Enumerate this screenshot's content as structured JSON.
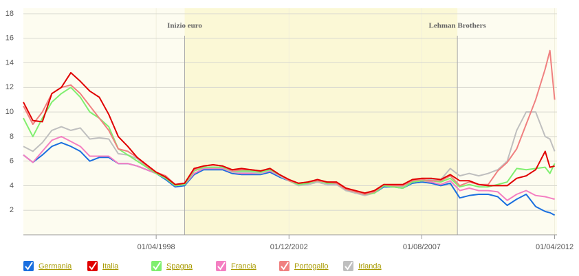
{
  "chart_data": {
    "type": "line",
    "x": [
      "01/08/1993",
      "01/12/1993",
      "01/04/1994",
      "01/08/1994",
      "01/12/1994",
      "01/04/1995",
      "01/08/1995",
      "01/12/1995",
      "01/04/1996",
      "01/08/1996",
      "01/12/1996",
      "01/04/1997",
      "01/08/1997",
      "01/12/1997",
      "01/04/1998",
      "01/08/1998",
      "01/12/1998",
      "01/04/1999",
      "01/08/1999",
      "01/12/1999",
      "01/04/2000",
      "01/08/2000",
      "01/12/2000",
      "01/04/2001",
      "01/08/2001",
      "01/12/2001",
      "01/04/2002",
      "01/08/2002",
      "01/12/2002",
      "01/04/2003",
      "01/08/2003",
      "01/12/2003",
      "01/04/2004",
      "01/08/2004",
      "01/12/2004",
      "01/04/2005",
      "01/08/2005",
      "01/12/2005",
      "01/04/2006",
      "01/08/2006",
      "01/12/2006",
      "01/04/2007",
      "01/08/2007",
      "01/12/2007",
      "01/04/2008",
      "01/08/2008",
      "01/12/2008",
      "01/04/2009",
      "01/08/2009",
      "01/12/2009",
      "01/04/2010",
      "01/08/2010",
      "01/12/2010",
      "01/04/2011",
      "01/08/2011",
      "01/12/2011",
      "01/02/2012",
      "01/04/2012"
    ],
    "xlim": [
      "01/08/1993",
      "01/05/2012"
    ],
    "xticks": [
      "01/04/1998",
      "01/12/2002",
      "01/08/2007",
      "01/04/2012"
    ],
    "ylim": [
      0,
      18
    ],
    "yticks": [
      2,
      4,
      6,
      8,
      10,
      12,
      14,
      16,
      18
    ],
    "grid": true,
    "annotations": [
      {
        "label": "Inizio euro",
        "x": "01/04/1999"
      },
      {
        "label": "Lehman Brothers",
        "x": "01/11/2008"
      }
    ],
    "series": [
      {
        "name": "Germania",
        "color": "#1a6fdf",
        "values": [
          6.5,
          5.9,
          6.5,
          7.2,
          7.5,
          7.2,
          6.8,
          6.0,
          6.3,
          6.3,
          5.8,
          5.8,
          5.6,
          5.3,
          5.0,
          4.5,
          3.9,
          4.0,
          4.9,
          5.3,
          5.3,
          5.3,
          5.0,
          4.9,
          4.9,
          4.9,
          5.1,
          4.7,
          4.4,
          4.1,
          4.1,
          4.3,
          4.1,
          4.1,
          3.7,
          3.4,
          3.3,
          3.4,
          3.9,
          3.9,
          3.8,
          4.2,
          4.3,
          4.2,
          4.0,
          4.2,
          3.0,
          3.2,
          3.3,
          3.3,
          3.1,
          2.4,
          2.9,
          3.3,
          2.3,
          1.9,
          1.8,
          1.6
        ]
      },
      {
        "name": "Italia",
        "color": "#e00000",
        "values": [
          10.8,
          9.3,
          9.2,
          11.5,
          12.0,
          13.2,
          12.5,
          11.7,
          11.2,
          9.8,
          8.0,
          7.2,
          6.3,
          5.7,
          5.1,
          4.7,
          4.1,
          4.2,
          5.4,
          5.6,
          5.7,
          5.6,
          5.3,
          5.4,
          5.3,
          5.2,
          5.4,
          4.9,
          4.5,
          4.2,
          4.3,
          4.5,
          4.3,
          4.3,
          3.8,
          3.6,
          3.4,
          3.6,
          4.1,
          4.1,
          4.1,
          4.5,
          4.6,
          4.6,
          4.5,
          4.9,
          4.4,
          4.4,
          4.1,
          4.0,
          4.0,
          4.0,
          4.6,
          4.8,
          5.3,
          6.8,
          5.5,
          5.6
        ]
      },
      {
        "name": "Spagna",
        "color": "#7fef6f",
        "values": [
          9.5,
          8.0,
          9.5,
          10.8,
          11.5,
          12.0,
          11.2,
          10.0,
          9.5,
          8.8,
          7.0,
          6.5,
          6.0,
          5.5,
          5.0,
          4.6,
          4.0,
          4.1,
          5.2,
          5.5,
          5.5,
          5.5,
          5.2,
          5.2,
          5.2,
          5.1,
          5.3,
          4.9,
          4.4,
          4.1,
          4.2,
          4.4,
          4.2,
          4.2,
          3.7,
          3.5,
          3.3,
          3.4,
          4.0,
          3.9,
          3.8,
          4.3,
          4.4,
          4.4,
          4.3,
          4.6,
          3.9,
          4.1,
          3.9,
          3.9,
          4.1,
          4.3,
          5.4,
          5.3,
          5.4,
          5.5,
          5.0,
          5.8
        ]
      },
      {
        "name": "Francia",
        "color": "#f47fc2",
        "values": [
          6.5,
          5.9,
          6.8,
          7.7,
          8.0,
          7.6,
          7.2,
          6.4,
          6.4,
          6.4,
          5.8,
          5.8,
          5.6,
          5.3,
          5.0,
          4.6,
          4.0,
          4.1,
          5.0,
          5.4,
          5.4,
          5.4,
          5.1,
          5.0,
          5.0,
          5.0,
          5.2,
          4.8,
          4.4,
          4.1,
          4.1,
          4.3,
          4.1,
          4.2,
          3.7,
          3.5,
          3.3,
          3.4,
          4.0,
          3.9,
          3.9,
          4.3,
          4.4,
          4.3,
          4.1,
          4.4,
          3.6,
          3.8,
          3.6,
          3.6,
          3.5,
          2.8,
          3.3,
          3.6,
          3.2,
          3.1,
          3.0,
          2.9
        ]
      },
      {
        "name": "Portogallo",
        "color": "#f08080",
        "values": [
          10.5,
          9.0,
          10.0,
          11.5,
          12.0,
          12.2,
          11.5,
          10.5,
          9.5,
          8.5,
          7.0,
          6.8,
          6.3,
          5.6,
          5.1,
          4.8,
          4.1,
          4.2,
          5.3,
          5.6,
          5.7,
          5.6,
          5.2,
          5.3,
          5.3,
          5.2,
          5.4,
          4.9,
          4.4,
          4.2,
          4.3,
          4.4,
          4.3,
          4.2,
          3.7,
          3.5,
          3.3,
          3.5,
          4.1,
          4.0,
          4.0,
          4.4,
          4.5,
          4.4,
          4.4,
          4.8,
          4.0,
          4.3,
          4.1,
          4.1,
          5.2,
          5.9,
          7.0,
          9.0,
          11.0,
          13.5,
          15.0,
          11.0
        ]
      },
      {
        "name": "Irlanda",
        "color": "#bfbfbf",
        "values": [
          7.2,
          6.8,
          7.5,
          8.5,
          8.8,
          8.5,
          8.7,
          7.8,
          7.9,
          7.8,
          6.6,
          6.5,
          6.2,
          5.5,
          5.1,
          4.7,
          4.0,
          4.1,
          5.2,
          5.5,
          5.5,
          5.5,
          5.1,
          5.1,
          5.1,
          5.0,
          5.3,
          4.8,
          4.4,
          4.0,
          4.1,
          4.3,
          4.1,
          4.1,
          3.6,
          3.4,
          3.2,
          3.4,
          4.0,
          3.9,
          3.9,
          4.3,
          4.4,
          4.5,
          4.5,
          5.4,
          4.8,
          5.0,
          4.8,
          5.0,
          5.3,
          6.0,
          8.5,
          10.0,
          10.0,
          8.0,
          7.8,
          6.8
        ]
      }
    ]
  }
}
